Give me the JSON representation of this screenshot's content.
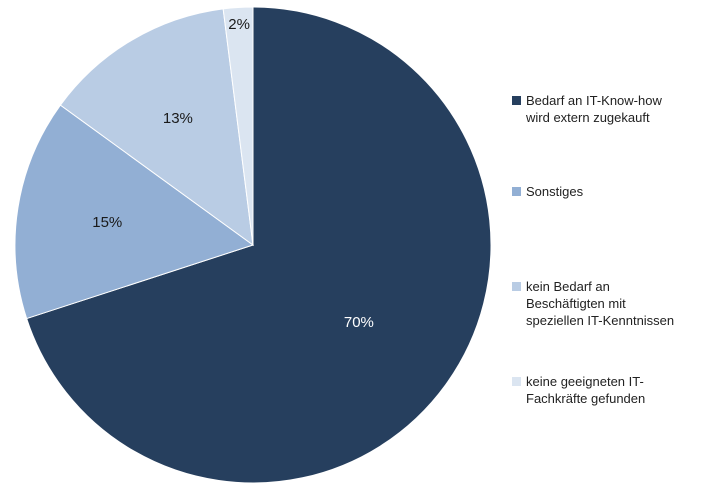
{
  "chart_data": {
    "type": "pie",
    "slices": [
      {
        "label": "Bedarf an IT-Know-how wird extern zugekauft",
        "value": 70,
        "display": "70%",
        "color": "#263f5e"
      },
      {
        "label": "Sonstiges",
        "value": 15,
        "display": "15%",
        "color": "#92afd4"
      },
      {
        "label": "kein Bedarf an Beschäftigten mit speziellen IT-Kenntnissen",
        "value": 13,
        "display": "13%",
        "color": "#b9cce4"
      },
      {
        "label": "keine geeigneten IT-Fachkräfte gefunden",
        "value": 2,
        "display": "2%",
        "color": "#dbe5f1"
      }
    ],
    "legend_position": "right",
    "start_angle": "12 o'clock",
    "direction": "clockwise"
  },
  "legend": {
    "items": [
      {
        "text": "Bedarf an IT-Know-how\nwird extern zugekauft",
        "color": "#263f5e"
      },
      {
        "text": "Sonstiges",
        "color": "#92afd4"
      },
      {
        "text": "kein Bedarf an\nBeschäftigten mit\nspeziellen IT-Kenntnissen",
        "color": "#b9cce4"
      },
      {
        "text": "keine geeigneten IT-\nFachkräfte gefunden",
        "color": "#dbe5f1"
      }
    ]
  }
}
